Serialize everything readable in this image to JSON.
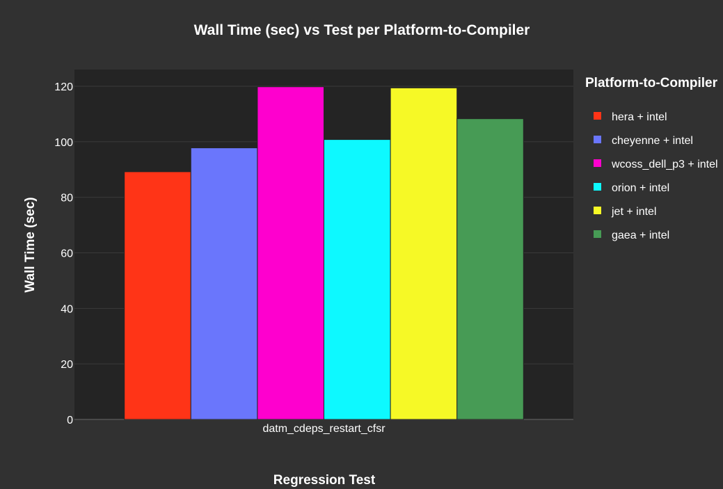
{
  "chart_data": {
    "type": "bar",
    "title": "Wall Time (sec) vs Test per Platform-to-Compiler",
    "xlabel": "Regression Test",
    "ylabel": "Wall Time (sec)",
    "categories": [
      "datm_cdeps_restart_cfsr"
    ],
    "ylim": [
      0,
      126
    ],
    "yticks": [
      0,
      20,
      40,
      60,
      80,
      100,
      120
    ],
    "grid": true,
    "legend_title": "Platform-to-Compiler",
    "legend_position": "right",
    "colors": {
      "background": "#313131",
      "plot_background": "#242424",
      "grid": "#3a3a3a"
    },
    "series": [
      {
        "name": "hera + intel",
        "values": [
          89.2
        ],
        "color": "#ff3417"
      },
      {
        "name": "cheyenne + intel",
        "values": [
          97.8
        ],
        "color": "#6a76fc"
      },
      {
        "name": "wcoss_dell_p3 + intel",
        "values": [
          119.8
        ],
        "color": "#fe00ce"
      },
      {
        "name": "orion + intel",
        "values": [
          100.8
        ],
        "color": "#0df9ff"
      },
      {
        "name": "jet + intel",
        "values": [
          119.4
        ],
        "color": "#f6f926"
      },
      {
        "name": "gaea + intel",
        "values": [
          108.3
        ],
        "color": "#479b55"
      }
    ]
  }
}
